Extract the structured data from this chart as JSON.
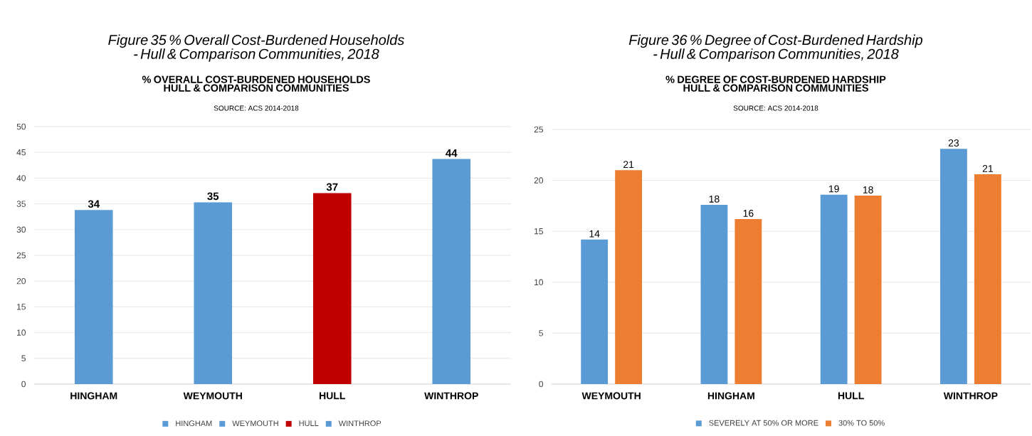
{
  "chart_data": [
    {
      "type": "bar",
      "title": "Figure 35 % Overall Cost-Burdened Households - Hull & Comparison Communities, 2018",
      "subtitle": "% OVERALL COST-BURDENED HOUSEHOLDS HULL & COMPARISON COMMUNITIES",
      "annotations": [
        "SOURCE: ACS 2014-2018"
      ],
      "categories": [
        "HINGHAM",
        "WEYMOUTH",
        "HULL",
        "WINTHROP"
      ],
      "stacked": true,
      "series": [
        {
          "name": "HINGHAM",
          "color": "#5b9bd5",
          "values": [
            33.8,
            null,
            null,
            null
          ],
          "value_labels": [
            "34",
            null,
            null,
            null
          ]
        },
        {
          "name": "WEYMOUTH",
          "color": "#5b9bd5",
          "values": [
            null,
            35.3,
            null,
            null
          ],
          "value_labels": [
            null,
            "35",
            null,
            null
          ]
        },
        {
          "name": "HULL",
          "color": "#c00000",
          "values": [
            null,
            null,
            37.1,
            null
          ],
          "value_labels": [
            null,
            null,
            "37",
            null
          ]
        },
        {
          "name": "WINTHROP",
          "color": "#5b9bd5",
          "values": [
            null,
            null,
            null,
            43.7
          ],
          "value_labels": [
            null,
            null,
            null,
            "44"
          ]
        }
      ],
      "ylim": [
        0,
        50
      ],
      "yticks": [
        0,
        5,
        10,
        15,
        20,
        25,
        30,
        35,
        40,
        45,
        50
      ],
      "grid": "y",
      "legend": "bottom"
    },
    {
      "type": "bar",
      "title": "Figure 36 % Degree of Cost-Burdened Hardship - Hull & Comparison Communities, 2018",
      "subtitle": "% DEGREE OF COST-BURDENED HARDSHIP HULL & COMPARISON COMMUNITIES",
      "annotations": [
        "SOURCE: ACS 2014-2018"
      ],
      "categories": [
        "WEYMOUTH",
        "HINGHAM",
        "HULL",
        "WINTHROP"
      ],
      "series": [
        {
          "name": "SEVERELY AT 50% OR MORE",
          "color": "#5b9bd5",
          "values": [
            14.2,
            17.6,
            18.6,
            23.1
          ],
          "value_labels": [
            "14",
            "18",
            "19",
            "23"
          ]
        },
        {
          "name": "30% TO 50%",
          "color": "#ed7d31",
          "values": [
            21.0,
            16.2,
            18.5,
            20.6
          ],
          "value_labels": [
            "21",
            "16",
            "18",
            "21"
          ]
        }
      ],
      "ylim": [
        0,
        25
      ],
      "yticks": [
        0,
        5,
        10,
        15,
        20,
        25
      ],
      "grid": "y",
      "legend": "bottom"
    }
  ]
}
